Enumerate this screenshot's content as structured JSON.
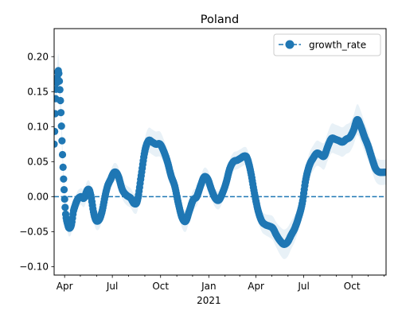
{
  "chart_data": {
    "type": "line",
    "title": "Poland",
    "xlabel": "",
    "ylabel": "",
    "x_axis": {
      "type": "date",
      "range": [
        "2020-03-12",
        "2021-12-05"
      ],
      "major_ticks": [
        {
          "date": "2020-04-01",
          "label": "Apr",
          "sublabel": ""
        },
        {
          "date": "2020-07-01",
          "label": "Jul",
          "sublabel": ""
        },
        {
          "date": "2020-10-01",
          "label": "Oct",
          "sublabel": ""
        },
        {
          "date": "2021-01-01",
          "label": "Jan",
          "sublabel": "2021"
        },
        {
          "date": "2021-04-01",
          "label": "Apr",
          "sublabel": ""
        },
        {
          "date": "2021-07-01",
          "label": "Jul",
          "sublabel": ""
        },
        {
          "date": "2021-10-01",
          "label": "Oct",
          "sublabel": ""
        }
      ],
      "minor_ticks": [
        "2020-05-01",
        "2020-06-01",
        "2020-08-01",
        "2020-09-01",
        "2020-11-01",
        "2020-12-01",
        "2021-02-01",
        "2021-03-01",
        "2021-05-01",
        "2021-06-01",
        "2021-08-01",
        "2021-09-01",
        "2021-11-01",
        "2021-12-01"
      ]
    },
    "y_axis": {
      "range": [
        -0.112,
        0.24
      ],
      "ticks": [
        -0.1,
        -0.05,
        0.0,
        0.05,
        0.1,
        0.15,
        0.2
      ],
      "tick_labels": [
        "−0.10",
        "−0.05",
        "0.00",
        "0.05",
        "0.10",
        "0.15",
        "0.20"
      ]
    },
    "grid": false,
    "legend": {
      "position": "top-right",
      "entries": [
        "growth_rate"
      ]
    },
    "reference_line": {
      "y": 0.0,
      "style": "dashed"
    },
    "series": [
      {
        "name": "growth_rate",
        "marker": "circle",
        "color": "#1f77b4",
        "band_color": "#1f77b4",
        "band_opacity": 0.1,
        "knots": [
          [
            "2020-03-12",
            0.075,
            0.005
          ],
          [
            "2020-03-15",
            0.14,
            0.015
          ],
          [
            "2020-03-18",
            0.17,
            0.02
          ],
          [
            "2020-03-20",
            0.18,
            0.025
          ],
          [
            "2020-03-22",
            0.165,
            0.02
          ],
          [
            "2020-03-25",
            0.12,
            0.018
          ],
          [
            "2020-03-28",
            0.06,
            0.015
          ],
          [
            "2020-03-31",
            0.01,
            0.012
          ],
          [
            "2020-04-03",
            -0.025,
            0.012
          ],
          [
            "2020-04-07",
            -0.04,
            0.012
          ],
          [
            "2020-04-10",
            -0.045,
            0.012
          ],
          [
            "2020-04-14",
            -0.04,
            0.012
          ],
          [
            "2020-04-18",
            -0.02,
            0.012
          ],
          [
            "2020-04-25",
            -0.005,
            0.012
          ],
          [
            "2020-05-02",
            0.0,
            0.012
          ],
          [
            "2020-05-08",
            -0.002,
            0.013
          ],
          [
            "2020-05-15",
            0.01,
            0.013
          ],
          [
            "2020-05-20",
            0.005,
            0.013
          ],
          [
            "2020-05-27",
            -0.025,
            0.013
          ],
          [
            "2020-06-02",
            -0.035,
            0.013
          ],
          [
            "2020-06-10",
            -0.025,
            0.013
          ],
          [
            "2020-06-20",
            0.01,
            0.013
          ],
          [
            "2020-06-28",
            0.025,
            0.013
          ],
          [
            "2020-07-05",
            0.035,
            0.013
          ],
          [
            "2020-07-12",
            0.03,
            0.013
          ],
          [
            "2020-07-20",
            0.01,
            0.013
          ],
          [
            "2020-07-28",
            0.002,
            0.014
          ],
          [
            "2020-08-05",
            -0.002,
            0.014
          ],
          [
            "2020-08-12",
            -0.01,
            0.014
          ],
          [
            "2020-08-18",
            -0.005,
            0.015
          ],
          [
            "2020-08-25",
            0.03,
            0.016
          ],
          [
            "2020-09-01",
            0.065,
            0.018
          ],
          [
            "2020-09-08",
            0.08,
            0.018
          ],
          [
            "2020-09-15",
            0.078,
            0.018
          ],
          [
            "2020-09-22",
            0.075,
            0.018
          ],
          [
            "2020-09-30",
            0.075,
            0.018
          ],
          [
            "2020-10-07",
            0.065,
            0.017
          ],
          [
            "2020-10-14",
            0.05,
            0.016
          ],
          [
            "2020-10-21",
            0.03,
            0.015
          ],
          [
            "2020-10-28",
            0.015,
            0.015
          ],
          [
            "2020-11-04",
            -0.01,
            0.015
          ],
          [
            "2020-11-11",
            -0.03,
            0.015
          ],
          [
            "2020-11-18",
            -0.035,
            0.015
          ],
          [
            "2020-11-25",
            -0.02,
            0.014
          ],
          [
            "2020-12-02",
            -0.005,
            0.014
          ],
          [
            "2020-12-09",
            0.0,
            0.013
          ],
          [
            "2020-12-16",
            0.015,
            0.013
          ],
          [
            "2020-12-23",
            0.028,
            0.013
          ],
          [
            "2020-12-30",
            0.025,
            0.013
          ],
          [
            "2021-01-06",
            0.01,
            0.013
          ],
          [
            "2021-01-13",
            -0.002,
            0.013
          ],
          [
            "2021-01-20",
            -0.005,
            0.013
          ],
          [
            "2021-01-27",
            0.005,
            0.013
          ],
          [
            "2021-02-03",
            0.02,
            0.013
          ],
          [
            "2021-02-10",
            0.04,
            0.013
          ],
          [
            "2021-02-17",
            0.05,
            0.013
          ],
          [
            "2021-02-24",
            0.052,
            0.013
          ],
          [
            "2021-03-03",
            0.055,
            0.013
          ],
          [
            "2021-03-10",
            0.058,
            0.013
          ],
          [
            "2021-03-15",
            0.055,
            0.013
          ],
          [
            "2021-03-22",
            0.035,
            0.014
          ],
          [
            "2021-03-29",
            0.005,
            0.015
          ],
          [
            "2021-04-05",
            -0.02,
            0.015
          ],
          [
            "2021-04-12",
            -0.035,
            0.015
          ],
          [
            "2021-04-19",
            -0.04,
            0.015
          ],
          [
            "2021-04-26",
            -0.042,
            0.016
          ],
          [
            "2021-05-03",
            -0.045,
            0.017
          ],
          [
            "2021-05-10",
            -0.055,
            0.018
          ],
          [
            "2021-05-17",
            -0.063,
            0.02
          ],
          [
            "2021-05-24",
            -0.068,
            0.021
          ],
          [
            "2021-05-31",
            -0.065,
            0.021
          ],
          [
            "2021-06-07",
            -0.055,
            0.02
          ],
          [
            "2021-06-14",
            -0.045,
            0.019
          ],
          [
            "2021-06-21",
            -0.03,
            0.018
          ],
          [
            "2021-06-28",
            -0.01,
            0.018
          ],
          [
            "2021-07-05",
            0.025,
            0.018
          ],
          [
            "2021-07-12",
            0.045,
            0.018
          ],
          [
            "2021-07-19",
            0.055,
            0.018
          ],
          [
            "2021-07-26",
            0.062,
            0.018
          ],
          [
            "2021-08-02",
            0.06,
            0.018
          ],
          [
            "2021-08-09",
            0.058,
            0.019
          ],
          [
            "2021-08-16",
            0.072,
            0.02
          ],
          [
            "2021-08-23",
            0.083,
            0.021
          ],
          [
            "2021-08-30",
            0.082,
            0.021
          ],
          [
            "2021-09-06",
            0.08,
            0.021
          ],
          [
            "2021-09-13",
            0.078,
            0.021
          ],
          [
            "2021-09-20",
            0.082,
            0.021
          ],
          [
            "2021-09-27",
            0.085,
            0.021
          ],
          [
            "2021-10-04",
            0.095,
            0.021
          ],
          [
            "2021-10-11",
            0.11,
            0.022
          ],
          [
            "2021-10-18",
            0.1,
            0.022
          ],
          [
            "2021-10-25",
            0.085,
            0.021
          ],
          [
            "2021-11-01",
            0.072,
            0.02
          ],
          [
            "2021-11-08",
            0.055,
            0.019
          ],
          [
            "2021-11-15",
            0.04,
            0.018
          ],
          [
            "2021-11-22",
            0.035,
            0.018
          ],
          [
            "2021-12-05",
            0.035,
            0.018
          ]
        ]
      }
    ]
  }
}
